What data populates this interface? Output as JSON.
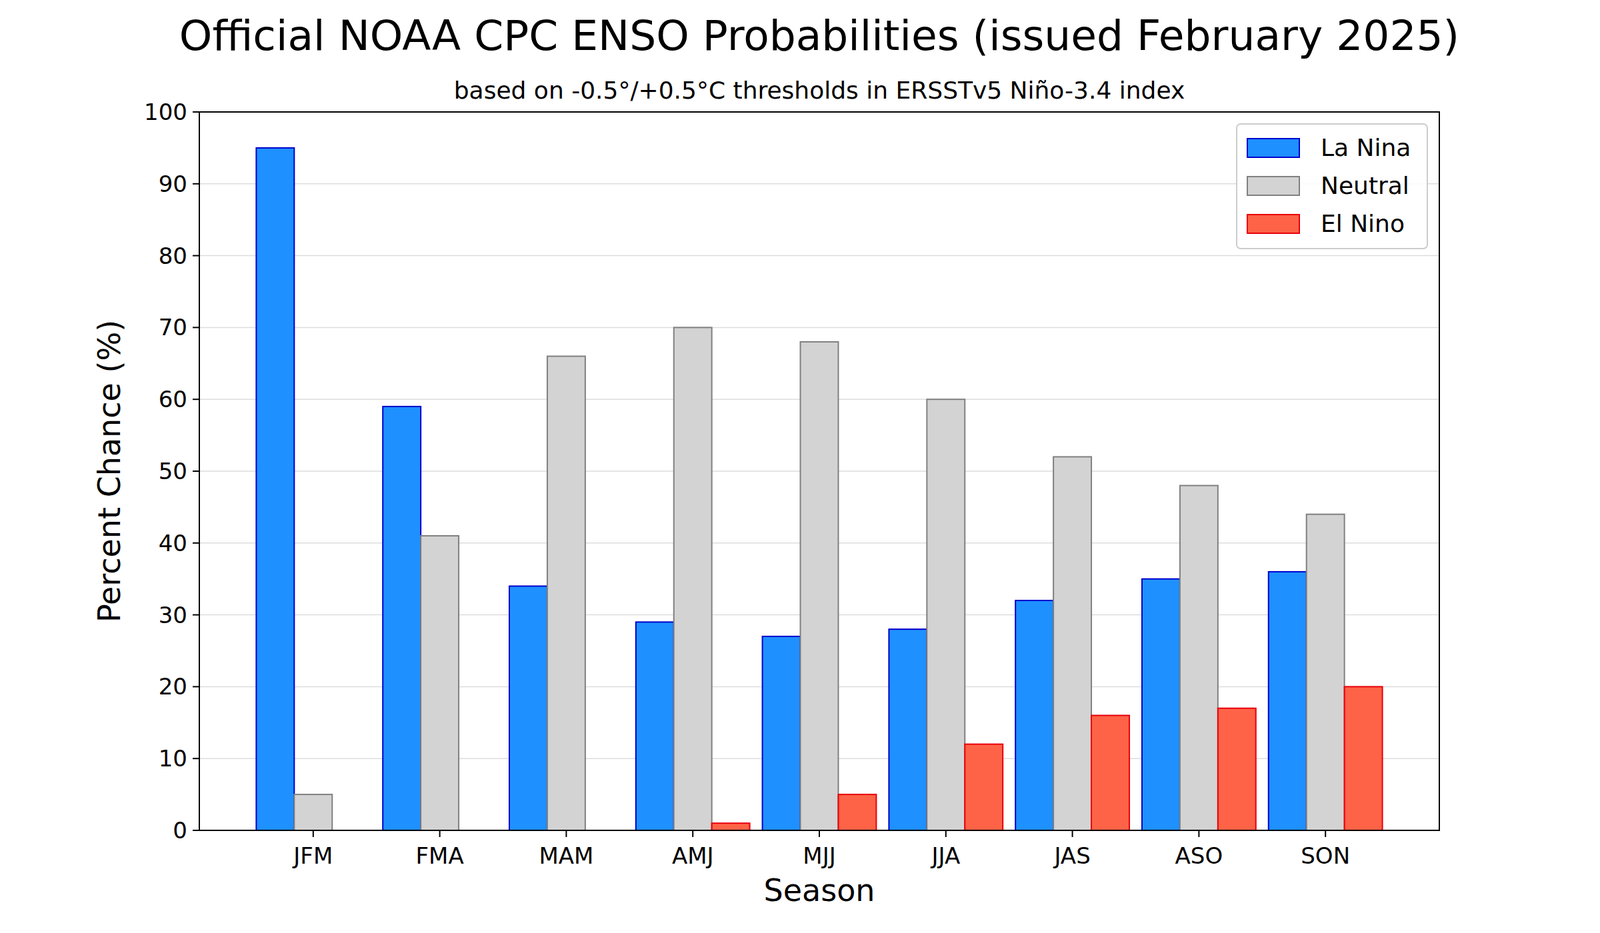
{
  "chart_data": {
    "type": "bar",
    "title": "Official NOAA CPC ENSO Probabilities (issued February 2025)",
    "subtitle": "based on -0.5°/+0.5°C thresholds in ERSSTv5 Niño-3.4 index",
    "x_label": "Season",
    "y_label": "Percent Chance (%)",
    "categories": [
      "JFM",
      "FMA",
      "MAM",
      "AMJ",
      "MJJ",
      "JJA",
      "JAS",
      "ASO",
      "SON"
    ],
    "series": [
      {
        "name": "La Nina",
        "color": "#1e90ff",
        "values": [
          95,
          59,
          34,
          29,
          27,
          28,
          32,
          35,
          36
        ]
      },
      {
        "name": "Neutral",
        "color": "#d3d3d3",
        "values": [
          5,
          41,
          66,
          70,
          68,
          60,
          52,
          48,
          44
        ]
      },
      {
        "name": "El Nino",
        "color": "#ff6347",
        "values": [
          0,
          0,
          0,
          1,
          5,
          12,
          16,
          17,
          20
        ]
      }
    ],
    "ylim": [
      0,
      100
    ],
    "yticks": [
      0,
      10,
      20,
      30,
      40,
      50,
      60,
      70,
      80,
      90,
      100
    ],
    "grid": true,
    "legend": "upper right"
  }
}
